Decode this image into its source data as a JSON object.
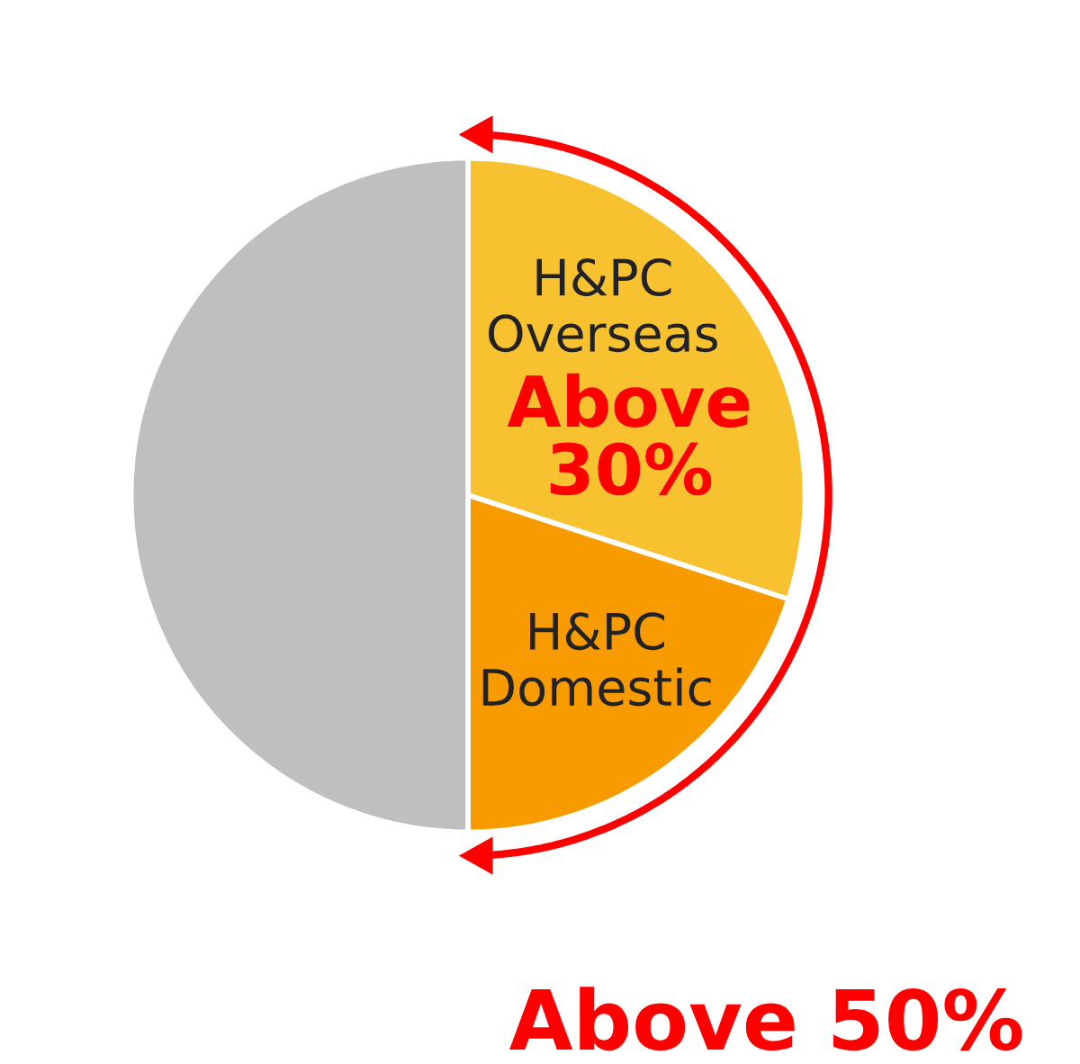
{
  "chart_data": {
    "type": "pie",
    "categories": [
      "H&PC\nOverseas",
      "H&PC\nDomestic",
      null
    ],
    "values": [
      30,
      20,
      50
    ],
    "colors": [
      "#f8c12f",
      "#f89b00",
      "#bfbfbf"
    ],
    "annotations": [
      "Above 30%",
      "Above 50%"
    ]
  }
}
